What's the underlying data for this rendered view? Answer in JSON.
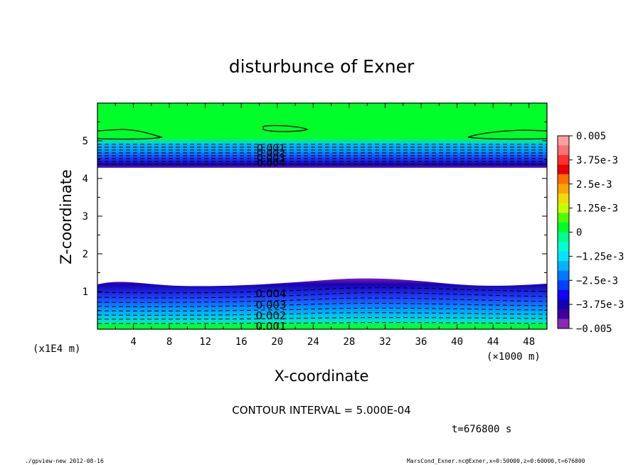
{
  "chart_data": {
    "type": "contour",
    "title": "disturbunce of Exner",
    "xlabel": "X-coordinate",
    "ylabel": "Z-coordinate",
    "x_unit_label": "(×1000 m)",
    "y_unit_label": "(x1E4 m)",
    "xlim": [
      0,
      50
    ],
    "ylim": [
      0,
      6
    ],
    "x_ticks": [
      "4",
      "8",
      "12",
      "16",
      "20",
      "24",
      "28",
      "32",
      "36",
      "40",
      "44",
      "48"
    ],
    "y_ticks": [
      "1",
      "2",
      "3",
      "4",
      "5"
    ],
    "colorbar": {
      "labels": [
        "0.005",
        "3.75e-3",
        "2.5e-3",
        "1.25e-3",
        "0",
        "−1.25e-3",
        "−2.5e-3",
        "−3.75e-3",
        "−0.005"
      ],
      "range": [
        -0.005,
        0.005
      ]
    },
    "contour_labels_upper": [
      "0.001",
      "0.002",
      "0.003",
      "0.004"
    ],
    "contour_labels_lower": [
      "0.004",
      "0.003",
      "0.002",
      "0.001"
    ],
    "contour_interval_text": "CONTOUR INTERVAL = 5.000E-04",
    "time_text": "t=676800 s"
  },
  "footer": {
    "left": "./gpview-new   2012-08-16",
    "right": "MarsCond_Exner.nc@Exner,x=0:50000,z=0:60000,t=676800"
  }
}
